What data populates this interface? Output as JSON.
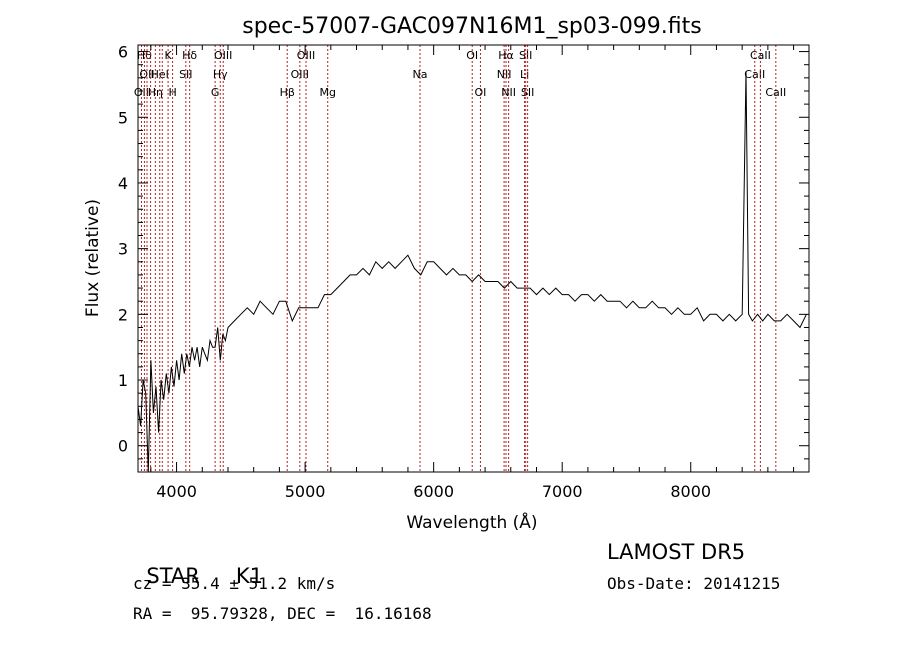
{
  "chart_data": {
    "type": "line",
    "title": "spec-57007-GAC097N16M1_sp03-099.fits",
    "xlabel": "Wavelength (Å)",
    "ylabel": "Flux (relative)",
    "xlim": [
      3700,
      8920
    ],
    "ylim": [
      -0.4,
      6.1
    ],
    "xticks": [
      4000,
      5000,
      6000,
      7000,
      8000
    ],
    "yticks": [
      0,
      1,
      2,
      3,
      4,
      5,
      6
    ],
    "grid": false,
    "line_color": "#000000",
    "marker_color": "#b22222",
    "series": [
      {
        "x": [
          3700,
          3720,
          3740,
          3760,
          3780,
          3800,
          3820,
          3840,
          3860,
          3880,
          3900,
          3920,
          3940,
          3960,
          3980,
          4000,
          4020,
          4040,
          4060,
          4080,
          4100,
          4120,
          4140,
          4160,
          4180,
          4200,
          4220,
          4240,
          4260,
          4280,
          4300,
          4320,
          4340,
          4360,
          4380,
          4400,
          4450,
          4500,
          4550,
          4600,
          4650,
          4700,
          4750,
          4800,
          4850,
          4900,
          4950,
          5000,
          5050,
          5100,
          5150,
          5200,
          5250,
          5300,
          5350,
          5400,
          5450,
          5500,
          5550,
          5600,
          5650,
          5700,
          5750,
          5800,
          5850,
          5900,
          5950,
          6000,
          6050,
          6100,
          6150,
          6200,
          6250,
          6300,
          6350,
          6400,
          6450,
          6500,
          6550,
          6600,
          6650,
          6700,
          6750,
          6800,
          6850,
          6900,
          6950,
          7000,
          7050,
          7100,
          7150,
          7200,
          7250,
          7300,
          7350,
          7400,
          7450,
          7500,
          7550,
          7600,
          7650,
          7700,
          7750,
          7800,
          7850,
          7900,
          7950,
          8000,
          8050,
          8100,
          8150,
          8200,
          8250,
          8300,
          8350,
          8400,
          8430,
          8450,
          8480,
          8520,
          8560,
          8600,
          8650,
          8700,
          8750,
          8800,
          8850,
          8900
        ],
        "y": [
          0.6,
          0.3,
          1.0,
          0.8,
          -0.4,
          1.3,
          0.5,
          0.9,
          0.2,
          1.0,
          0.7,
          1.1,
          0.8,
          1.2,
          0.9,
          1.3,
          1.0,
          1.4,
          1.1,
          1.4,
          1.2,
          1.5,
          1.3,
          1.5,
          1.2,
          1.5,
          1.4,
          1.3,
          1.6,
          1.5,
          1.5,
          1.8,
          1.3,
          1.7,
          1.6,
          1.8,
          1.9,
          2.0,
          2.1,
          2.0,
          2.2,
          2.1,
          2.0,
          2.2,
          2.2,
          1.9,
          2.1,
          2.1,
          2.1,
          2.1,
          2.3,
          2.3,
          2.4,
          2.5,
          2.6,
          2.6,
          2.7,
          2.6,
          2.8,
          2.7,
          2.8,
          2.7,
          2.8,
          2.9,
          2.7,
          2.6,
          2.8,
          2.8,
          2.7,
          2.6,
          2.7,
          2.6,
          2.6,
          2.5,
          2.6,
          2.5,
          2.5,
          2.5,
          2.4,
          2.5,
          2.4,
          2.4,
          2.4,
          2.3,
          2.4,
          2.3,
          2.4,
          2.3,
          2.3,
          2.2,
          2.3,
          2.3,
          2.2,
          2.3,
          2.2,
          2.2,
          2.2,
          2.1,
          2.2,
          2.1,
          2.1,
          2.2,
          2.1,
          2.1,
          2.0,
          2.1,
          2.0,
          2.0,
          2.1,
          1.9,
          2.0,
          2.0,
          1.9,
          2.0,
          1.9,
          2.0,
          5.7,
          2.0,
          1.9,
          2.0,
          1.9,
          2.0,
          1.9,
          1.9,
          2.0,
          1.9,
          1.8,
          2.0
        ]
      }
    ],
    "line_markers": [
      {
        "x": 3727,
        "label": "OII",
        "row": 2
      },
      {
        "x": 3750,
        "label": "Hθ",
        "row": 0
      },
      {
        "x": 3770,
        "label": "OII",
        "row": 1
      },
      {
        "x": 3798,
        "label": "",
        "row": -1
      },
      {
        "x": 3835,
        "label": "Hη",
        "row": 2
      },
      {
        "x": 3869,
        "label": "HeI",
        "row": 1
      },
      {
        "x": 3889,
        "label": "",
        "row": -1
      },
      {
        "x": 3934,
        "label": "K",
        "row": 0
      },
      {
        "x": 3969,
        "label": "H",
        "row": 2
      },
      {
        "x": 4072,
        "label": "SII",
        "row": 1
      },
      {
        "x": 4102,
        "label": "Hδ",
        "row": 0
      },
      {
        "x": 4300,
        "label": "G",
        "row": 2
      },
      {
        "x": 4340,
        "label": "Hγ",
        "row": 1
      },
      {
        "x": 4363,
        "label": "OIII",
        "row": 0
      },
      {
        "x": 4861,
        "label": "Hβ",
        "row": 2
      },
      {
        "x": 4959,
        "label": "OIII",
        "row": 1
      },
      {
        "x": 5007,
        "label": "OIII",
        "row": 0
      },
      {
        "x": 5176,
        "label": "Mg",
        "row": 2
      },
      {
        "x": 5894,
        "label": "Na",
        "row": 1
      },
      {
        "x": 6300,
        "label": "OI",
        "row": 0
      },
      {
        "x": 6364,
        "label": "OI",
        "row": 2
      },
      {
        "x": 6548,
        "label": "NII",
        "row": 1
      },
      {
        "x": 6563,
        "label": "Hα",
        "row": 0
      },
      {
        "x": 6583,
        "label": "NII",
        "row": 2
      },
      {
        "x": 6707,
        "label": "Li",
        "row": 1
      },
      {
        "x": 6716,
        "label": "SII",
        "row": 0
      },
      {
        "x": 6731,
        "label": "SII",
        "row": 2
      },
      {
        "x": 8498,
        "label": "CaII",
        "row": 1
      },
      {
        "x": 8542,
        "label": "CaII",
        "row": 0
      },
      {
        "x": 8662,
        "label": "CaII",
        "row": 2
      }
    ]
  },
  "info": {
    "class_label": "STAR",
    "subclass": "K1",
    "survey": "LAMOST DR5",
    "cz": "cz = 35.4 ± 51.2 km/s",
    "obs_date": "Obs-Date: 20141215",
    "coords": "RA =  95.79328, DEC =  16.16168"
  }
}
